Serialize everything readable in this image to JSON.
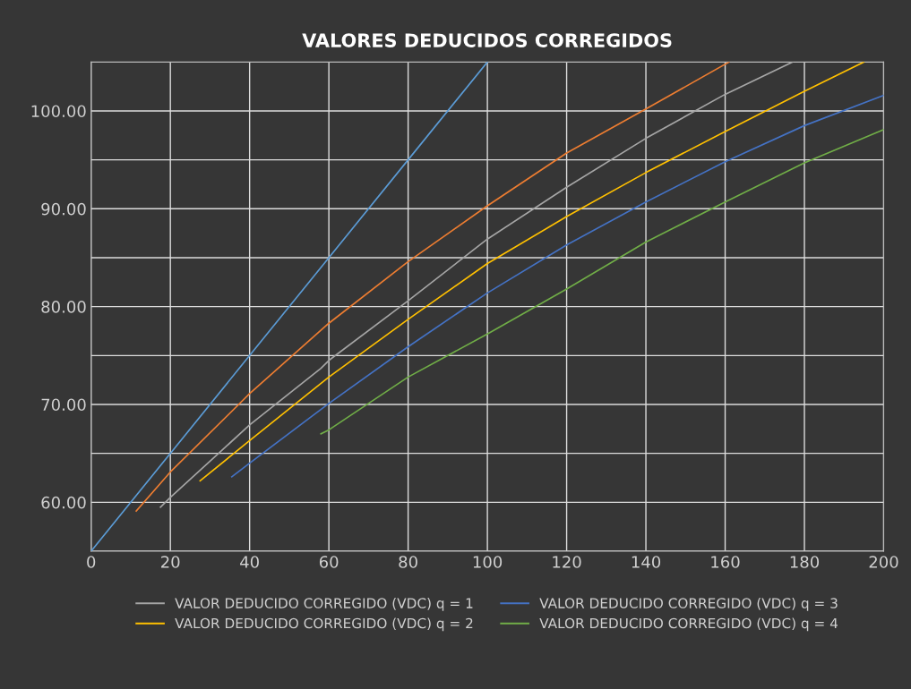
{
  "chart_data": {
    "type": "line",
    "title": "VALORES DEDUCIDOS CORREGIDOS",
    "xlim": [
      0,
      200
    ],
    "xticks": [
      0,
      20,
      40,
      60,
      80,
      100,
      120,
      140,
      160,
      180,
      200
    ],
    "ylim": [
      55,
      105
    ],
    "yticks": [
      {
        "value": 55,
        "label": null
      },
      {
        "value": 60,
        "label": "60.00"
      },
      {
        "value": 65,
        "label": null
      },
      {
        "value": 70,
        "label": "70.00"
      },
      {
        "value": 75,
        "label": null
      },
      {
        "value": 80,
        "label": "80.00"
      },
      {
        "value": 85,
        "label": null
      },
      {
        "value": 90,
        "label": "90.00"
      },
      {
        "value": 95,
        "label": null
      },
      {
        "value": 100,
        "label": "100.00"
      },
      {
        "value": 105,
        "label": null
      }
    ],
    "grid": true,
    "legend": "bottom",
    "marker": "none",
    "line_style": "solid",
    "series": [
      {
        "color": "#5b9bd5",
        "x": [
          0,
          20,
          40,
          60,
          80,
          100
        ],
        "values": [
          55,
          65,
          75,
          85,
          95,
          105
        ]
      },
      {
        "color": "#ed7d31",
        "x": [
          11.4,
          20,
          40,
          60,
          80,
          100,
          120,
          140,
          161
        ],
        "values": [
          59.1,
          63.1,
          71.1,
          78.3,
          84.6,
          90.3,
          95.7,
          100.2,
          105
        ]
      },
      {
        "name": "VALOR DEDUCIDO CORREGIDO (VDC) q = 1",
        "color": "#a5a5a5",
        "x": [
          17.5,
          20,
          40,
          58,
          60,
          80,
          100,
          120,
          140,
          160,
          177
        ],
        "values": [
          59.5,
          60.5,
          67.9,
          73.7,
          74.5,
          80.6,
          86.9,
          92.2,
          97.2,
          101.7,
          105
        ]
      },
      {
        "name": "VALOR DEDUCIDO CORREGIDO (VDC) q = 2",
        "color": "#ffc000",
        "x": [
          27.5,
          40,
          60,
          80,
          100,
          120,
          140,
          160,
          180,
          195
        ],
        "values": [
          62.2,
          66.3,
          72.8,
          78.7,
          84.4,
          89.2,
          93.7,
          97.9,
          102.0,
          105
        ]
      },
      {
        "name": "VALOR DEDUCIDO CORREGIDO (VDC) q = 3",
        "color": "#4472c4",
        "x": [
          35.5,
          40,
          60,
          80,
          100,
          120,
          140,
          160,
          180,
          200
        ],
        "values": [
          62.6,
          64.0,
          70.1,
          75.9,
          81.4,
          86.3,
          90.7,
          94.8,
          98.5,
          101.6
        ]
      },
      {
        "name": "VALOR DEDUCIDO CORREGIDO (VDC) q = 4",
        "color": "#70ad47",
        "x": [
          58,
          60,
          80,
          100,
          120,
          140,
          160,
          180,
          200
        ],
        "values": [
          67.0,
          67.4,
          72.8,
          77.2,
          81.8,
          86.6,
          90.7,
          94.7,
          98.1
        ]
      }
    ]
  }
}
